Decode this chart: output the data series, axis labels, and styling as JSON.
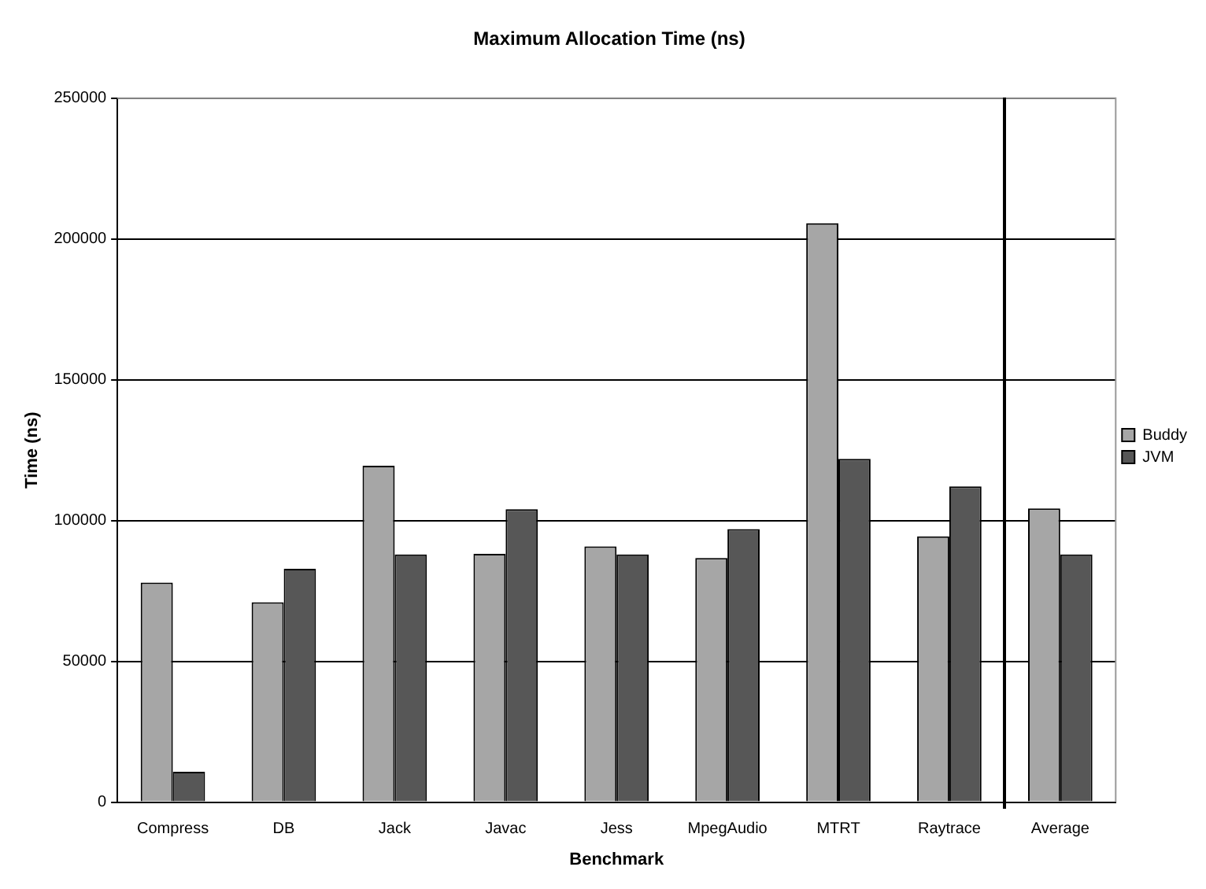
{
  "chart_data": {
    "type": "bar",
    "title": "Maximum Allocation Time (ns)",
    "xlabel": "Benchmark",
    "ylabel": "Time (ns)",
    "categories": [
      "Compress",
      "DB",
      "Jack",
      "Javac",
      "Jess",
      "MpegAudio",
      "MTRT",
      "Raytrace",
      "Average"
    ],
    "series": [
      {
        "name": "Buddy",
        "color": "#a6a6a6",
        "values": [
          78000,
          71000,
          119500,
          88200,
          90800,
          86700,
          205600,
          94400,
          104300
        ]
      },
      {
        "name": "JVM",
        "color": "#575757",
        "values": [
          10800,
          82900,
          88000,
          104000,
          88000,
          97000,
          121900,
          112100,
          88000
        ]
      }
    ],
    "ylim": [
      0,
      250000
    ],
    "yticks": [
      0,
      50000,
      100000,
      150000,
      200000,
      250000
    ],
    "grid": "y",
    "legend": "right"
  }
}
